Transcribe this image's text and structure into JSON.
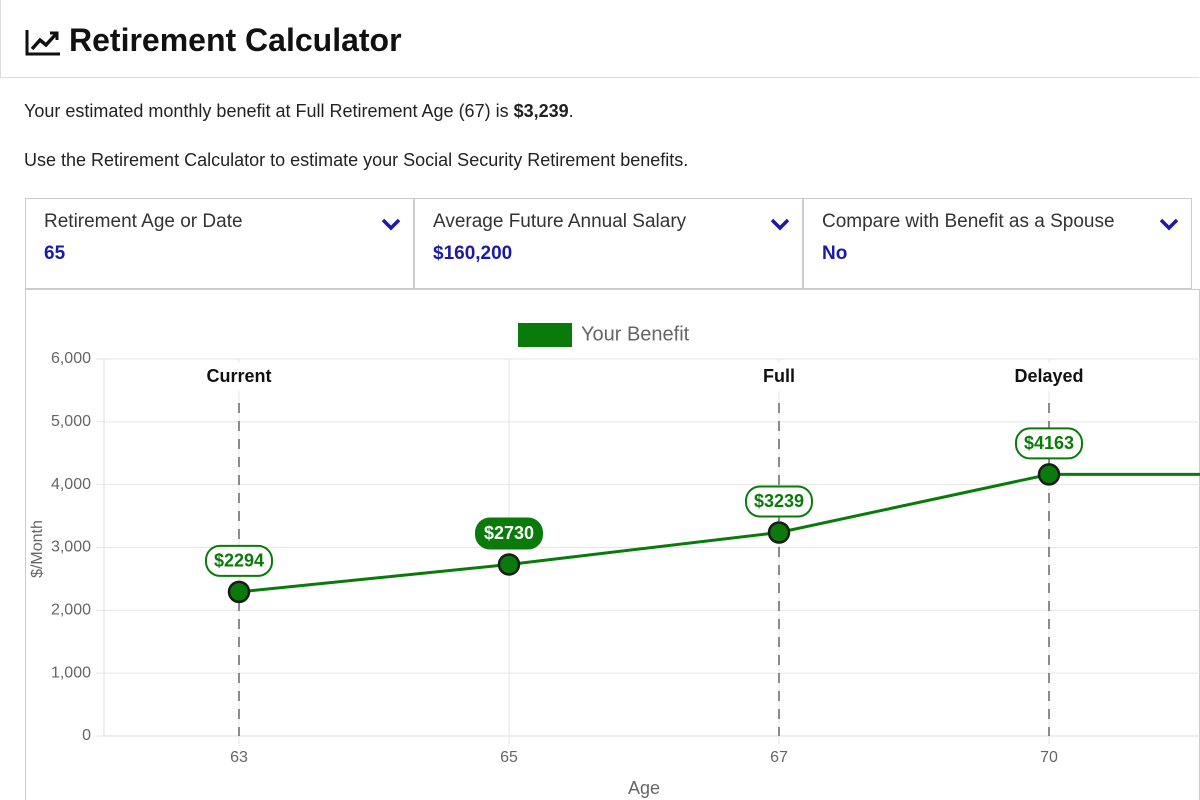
{
  "header": {
    "title": "Retirement Calculator"
  },
  "summary": {
    "text": "Your estimated monthly benefit at Full Retirement Age (67) is ",
    "amount": "$3,239",
    "end": "."
  },
  "intro": "Use the Retirement Calculator to estimate your Social Security Retirement benefits.",
  "options": [
    {
      "label": "Retirement Age or Date",
      "value": "65"
    },
    {
      "label": "Average Future Annual Salary",
      "value": "$160,200"
    },
    {
      "label": "Compare with Benefit as a Spouse",
      "value": "No"
    }
  ],
  "chart_data": {
    "type": "line",
    "xlabel": "Age",
    "ylabel": "$/Month",
    "categories": [
      "63",
      "65",
      "67",
      "70"
    ],
    "annotations": [
      "Current",
      null,
      "Full",
      "Delayed"
    ],
    "series": [
      {
        "name": "Your Benefit",
        "color": "#0a7a0a",
        "values": [
          2294,
          2730,
          3239,
          4163
        ],
        "value_labels": [
          "$2294",
          "$2730",
          "$3239",
          "$4163"
        ]
      }
    ],
    "ylim": [
      0,
      6000
    ],
    "yticks": [
      0,
      {
        "value": 1000,
        "label": "1,000"
      },
      {
        "value": 2000,
        "label": "2,000"
      },
      {
        "value": 3000,
        "label": "3,000"
      },
      {
        "value": 4000,
        "label": "4,000"
      },
      {
        "value": 5000,
        "label": "5,000"
      },
      {
        "value": 6000,
        "label": "6,000"
      }
    ],
    "grid": true,
    "legend": "top"
  }
}
